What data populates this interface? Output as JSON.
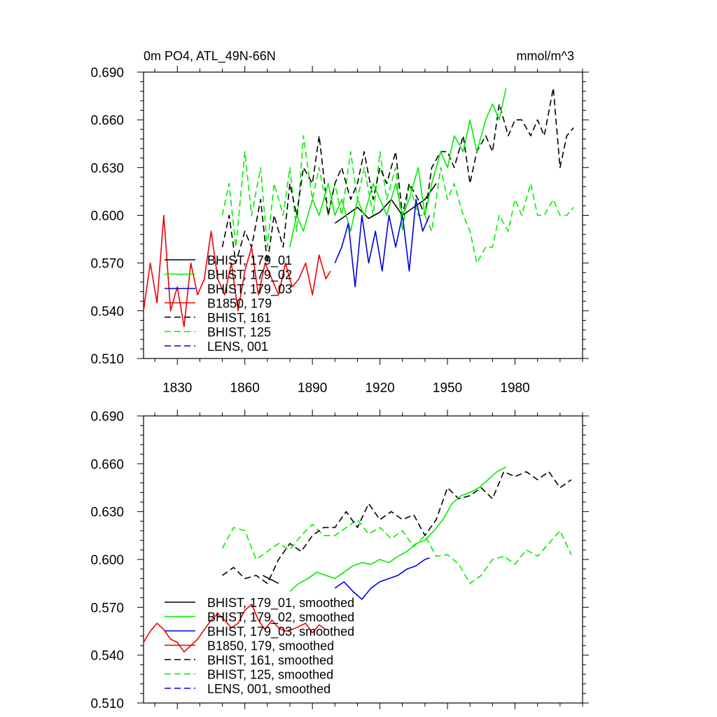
{
  "chart_data": [
    {
      "type": "line",
      "title": "0m PO4, ATL_49N-66N",
      "units": "mmol/m^3",
      "xlim": [
        1815,
        2010
      ],
      "ylim": [
        0.51,
        0.69
      ],
      "xticks": [
        1830,
        1860,
        1890,
        1920,
        1950,
        1980
      ],
      "yticks": [
        0.51,
        0.54,
        0.57,
        0.6,
        0.63,
        0.66,
        0.69
      ],
      "ytick_labels": [
        "0.510",
        "0.540",
        "0.570",
        "0.600",
        "0.630",
        "0.660",
        "0.690"
      ],
      "legend": [
        {
          "label": "BHIST, 179_01",
          "color": "#000000",
          "dash": "solid"
        },
        {
          "label": "BHIST, 179_02",
          "color": "#00ee00",
          "dash": "solid"
        },
        {
          "label": "BHIST, 179_03",
          "color": "#0000dd",
          "dash": "solid"
        },
        {
          "label": "B1850, 179",
          "color": "#ee0000",
          "dash": "solid"
        },
        {
          "label": "BHIST, 161",
          "color": "#000000",
          "dash": "dashed"
        },
        {
          "label": "BHIST, 125",
          "color": "#00ee00",
          "dash": "dashed"
        },
        {
          "label": "LENS, 001",
          "color": "#0000dd",
          "dash": "dashed"
        }
      ],
      "series": [
        {
          "name": "BHIST, 125",
          "color": "#00ee00",
          "dash": "dashed",
          "x": [
            1850,
            1853,
            1856,
            1860,
            1863,
            1867,
            1870,
            1873,
            1877,
            1880,
            1883,
            1886,
            1890,
            1893,
            1897,
            1900,
            1903,
            1907,
            1910,
            1913,
            1917,
            1920,
            1923,
            1927,
            1930,
            1933,
            1937,
            1940,
            1943,
            1947,
            1950,
            1953,
            1957,
            1960,
            1963,
            1967,
            1970,
            1973,
            1977,
            1980,
            1983,
            1987,
            1990,
            1993,
            1997,
            2000,
            2003,
            2006
          ],
          "y": [
            0.6,
            0.62,
            0.58,
            0.64,
            0.6,
            0.63,
            0.58,
            0.62,
            0.6,
            0.63,
            0.59,
            0.65,
            0.61,
            0.63,
            0.6,
            0.62,
            0.6,
            0.64,
            0.61,
            0.63,
            0.6,
            0.64,
            0.61,
            0.63,
            0.59,
            0.62,
            0.6,
            0.6,
            0.59,
            0.63,
            0.61,
            0.62,
            0.6,
            0.59,
            0.57,
            0.58,
            0.58,
            0.6,
            0.59,
            0.61,
            0.6,
            0.62,
            0.6,
            0.6,
            0.61,
            0.6,
            0.6,
            0.605
          ]
        },
        {
          "name": "BHIST, 161",
          "color": "#000000",
          "dash": "dashed",
          "x": [
            1850,
            1853,
            1856,
            1860,
            1863,
            1867,
            1870,
            1873,
            1877,
            1880,
            1883,
            1886,
            1890,
            1893,
            1897,
            1900,
            1903,
            1907,
            1910,
            1913,
            1917,
            1920,
            1923,
            1927,
            1930,
            1933,
            1937,
            1940,
            1943,
            1947,
            1950,
            1953,
            1957,
            1960,
            1963,
            1967,
            1970,
            1973,
            1977,
            1980,
            1983,
            1987,
            1990,
            1993,
            1997,
            2000,
            2003,
            2006
          ],
          "y": [
            0.58,
            0.6,
            0.57,
            0.59,
            0.58,
            0.61,
            0.57,
            0.6,
            0.58,
            0.62,
            0.6,
            0.63,
            0.62,
            0.65,
            0.6,
            0.62,
            0.63,
            0.61,
            0.62,
            0.64,
            0.61,
            0.63,
            0.62,
            0.64,
            0.6,
            0.62,
            0.61,
            0.6,
            0.63,
            0.64,
            0.64,
            0.63,
            0.65,
            0.62,
            0.64,
            0.65,
            0.64,
            0.67,
            0.65,
            0.66,
            0.66,
            0.65,
            0.66,
            0.65,
            0.68,
            0.63,
            0.65,
            0.655
          ]
        },
        {
          "name": "BHIST, 179_01",
          "color": "#000000",
          "dash": "solid",
          "x": [
            1900,
            1905,
            1910,
            1915,
            1920,
            1925,
            1930,
            1935,
            1940,
            1945
          ],
          "y": [
            0.595,
            0.6,
            0.605,
            0.598,
            0.602,
            0.61,
            0.6,
            0.605,
            0.61,
            0.62
          ]
        },
        {
          "name": "BHIST, 179_02",
          "color": "#00ee00",
          "dash": "solid",
          "x": [
            1880,
            1883,
            1886,
            1890,
            1893,
            1897,
            1900,
            1903,
            1907,
            1910,
            1913,
            1917,
            1920,
            1923,
            1927,
            1930,
            1933,
            1937,
            1940,
            1943,
            1947,
            1950,
            1953,
            1957,
            1960,
            1963,
            1967,
            1970,
            1973,
            1976
          ],
          "y": [
            0.58,
            0.6,
            0.59,
            0.61,
            0.6,
            0.62,
            0.6,
            0.61,
            0.59,
            0.61,
            0.6,
            0.62,
            0.61,
            0.6,
            0.62,
            0.6,
            0.61,
            0.63,
            0.6,
            0.62,
            0.64,
            0.63,
            0.65,
            0.64,
            0.66,
            0.64,
            0.66,
            0.67,
            0.66,
            0.68
          ]
        },
        {
          "name": "BHIST, 179_03",
          "color": "#0000dd",
          "dash": "solid",
          "x": [
            1900,
            1903,
            1906,
            1909,
            1912,
            1915,
            1918,
            1921,
            1924,
            1927,
            1930,
            1933,
            1936,
            1939,
            1942
          ],
          "y": [
            0.57,
            0.58,
            0.595,
            0.555,
            0.6,
            0.57,
            0.59,
            0.565,
            0.6,
            0.58,
            0.6,
            0.565,
            0.61,
            0.59,
            0.6
          ]
        },
        {
          "name": "B1850, 179",
          "color": "#ee0000",
          "dash": "solid",
          "x": [
            1815,
            1818,
            1821,
            1824,
            1827,
            1830,
            1833,
            1836,
            1839,
            1842,
            1845,
            1848,
            1851,
            1854,
            1857,
            1860,
            1863,
            1866,
            1869,
            1872,
            1875,
            1878,
            1881,
            1884,
            1887,
            1890,
            1893,
            1896,
            1898
          ],
          "y": [
            0.54,
            0.57,
            0.545,
            0.6,
            0.54,
            0.555,
            0.53,
            0.57,
            0.55,
            0.56,
            0.59,
            0.56,
            0.55,
            0.57,
            0.54,
            0.565,
            0.58,
            0.55,
            0.57,
            0.56,
            0.55,
            0.57,
            0.555,
            0.56,
            0.57,
            0.55,
            0.575,
            0.56,
            0.565
          ]
        }
      ]
    },
    {
      "type": "line",
      "title": "",
      "units": "",
      "xlim": [
        1815,
        2010
      ],
      "ylim": [
        0.51,
        0.69
      ],
      "xticks": [
        1830,
        1860,
        1890,
        1920,
        1950,
        1980
      ],
      "yticks": [
        0.51,
        0.54,
        0.57,
        0.6,
        0.63,
        0.66,
        0.69
      ],
      "ytick_labels": [
        "0.510",
        "0.540",
        "0.570",
        "0.600",
        "0.630",
        "0.660",
        "0.690"
      ],
      "legend": [
        {
          "label": "BHIST, 179_01, smoothed",
          "color": "#000000",
          "dash": "solid"
        },
        {
          "label": "BHIST, 179_02, smoothed",
          "color": "#00ee00",
          "dash": "solid"
        },
        {
          "label": "BHIST, 179_03, smoothed",
          "color": "#0000dd",
          "dash": "solid"
        },
        {
          "label": "B1850, 179, smoothed",
          "color": "#ee0000",
          "dash": "solid"
        },
        {
          "label": "BHIST, 161, smoothed",
          "color": "#000000",
          "dash": "dashed"
        },
        {
          "label": "BHIST, 125, smoothed",
          "color": "#00ee00",
          "dash": "dashed"
        },
        {
          "label": "LENS, 001, smoothed",
          "color": "#0000dd",
          "dash": "dashed"
        }
      ],
      "series": [
        {
          "name": "BHIST, 125, smoothed",
          "color": "#00ee00",
          "dash": "dashed",
          "x": [
            1850,
            1855,
            1860,
            1865,
            1870,
            1875,
            1880,
            1885,
            1890,
            1895,
            1900,
            1905,
            1910,
            1915,
            1920,
            1925,
            1930,
            1935,
            1940,
            1945,
            1950,
            1955,
            1960,
            1965,
            1970,
            1975,
            1980,
            1985,
            1990,
            1995,
            2000,
            2005
          ],
          "y": [
            0.607,
            0.62,
            0.618,
            0.6,
            0.605,
            0.61,
            0.606,
            0.615,
            0.622,
            0.615,
            0.615,
            0.62,
            0.625,
            0.616,
            0.62,
            0.613,
            0.618,
            0.608,
            0.615,
            0.602,
            0.603,
            0.597,
            0.585,
            0.59,
            0.6,
            0.602,
            0.597,
            0.606,
            0.602,
            0.61,
            0.618,
            0.603
          ]
        },
        {
          "name": "BHIST, 161, smoothed",
          "color": "#000000",
          "dash": "dashed",
          "x": [
            1850,
            1855,
            1860,
            1865,
            1870,
            1875,
            1880,
            1885,
            1890,
            1895,
            1900,
            1905,
            1910,
            1915,
            1920,
            1925,
            1930,
            1935,
            1940,
            1945,
            1950,
            1955,
            1960,
            1965,
            1970,
            1975,
            1980,
            1985,
            1990,
            1995,
            2000,
            2005
          ],
          "y": [
            0.59,
            0.595,
            0.588,
            0.59,
            0.585,
            0.6,
            0.61,
            0.605,
            0.615,
            0.62,
            0.62,
            0.63,
            0.62,
            0.635,
            0.625,
            0.63,
            0.625,
            0.628,
            0.615,
            0.625,
            0.645,
            0.638,
            0.64,
            0.645,
            0.638,
            0.655,
            0.652,
            0.655,
            0.65,
            0.655,
            0.645,
            0.65
          ]
        },
        {
          "name": "BHIST, 179_01, smoothed",
          "color": "#000000",
          "dash": "solid",
          "x": [
            1868,
            1875
          ],
          "y": [
            0.59,
            0.585
          ]
        },
        {
          "name": "BHIST, 179_02, smoothed",
          "color": "#00ee00",
          "dash": "solid",
          "x": [
            1880,
            1884,
            1888,
            1892,
            1896,
            1900,
            1904,
            1908,
            1912,
            1916,
            1920,
            1924,
            1928,
            1932,
            1936,
            1940,
            1944,
            1948,
            1952,
            1956,
            1960,
            1964,
            1968,
            1972,
            1976
          ],
          "y": [
            0.58,
            0.585,
            0.588,
            0.592,
            0.59,
            0.588,
            0.592,
            0.596,
            0.598,
            0.597,
            0.6,
            0.598,
            0.602,
            0.605,
            0.61,
            0.612,
            0.618,
            0.625,
            0.635,
            0.64,
            0.642,
            0.645,
            0.65,
            0.655,
            0.658
          ]
        },
        {
          "name": "BHIST, 179_03, smoothed",
          "color": "#0000dd",
          "dash": "solid",
          "x": [
            1900,
            1904,
            1908,
            1912,
            1916,
            1920,
            1924,
            1928,
            1932,
            1936,
            1940,
            1942
          ],
          "y": [
            0.582,
            0.586,
            0.58,
            0.575,
            0.582,
            0.586,
            0.588,
            0.59,
            0.594,
            0.596,
            0.6,
            0.601
          ]
        },
        {
          "name": "B1850, 179, smoothed",
          "color": "#ee0000",
          "dash": "solid",
          "x": [
            1815,
            1818,
            1821,
            1824,
            1827,
            1830,
            1833,
            1836,
            1839,
            1842,
            1845,
            1848,
            1851,
            1854,
            1857,
            1860,
            1863,
            1866,
            1869,
            1872,
            1875,
            1878,
            1881,
            1884,
            1887,
            1890,
            1893,
            1896
          ],
          "y": [
            0.548,
            0.555,
            0.56,
            0.556,
            0.55,
            0.548,
            0.542,
            0.546,
            0.55,
            0.556,
            0.562,
            0.566,
            0.562,
            0.557,
            0.56,
            0.568,
            0.572,
            0.562,
            0.556,
            0.562,
            0.557,
            0.555,
            0.556,
            0.558,
            0.56,
            0.554,
            0.559,
            0.556
          ]
        }
      ]
    }
  ]
}
